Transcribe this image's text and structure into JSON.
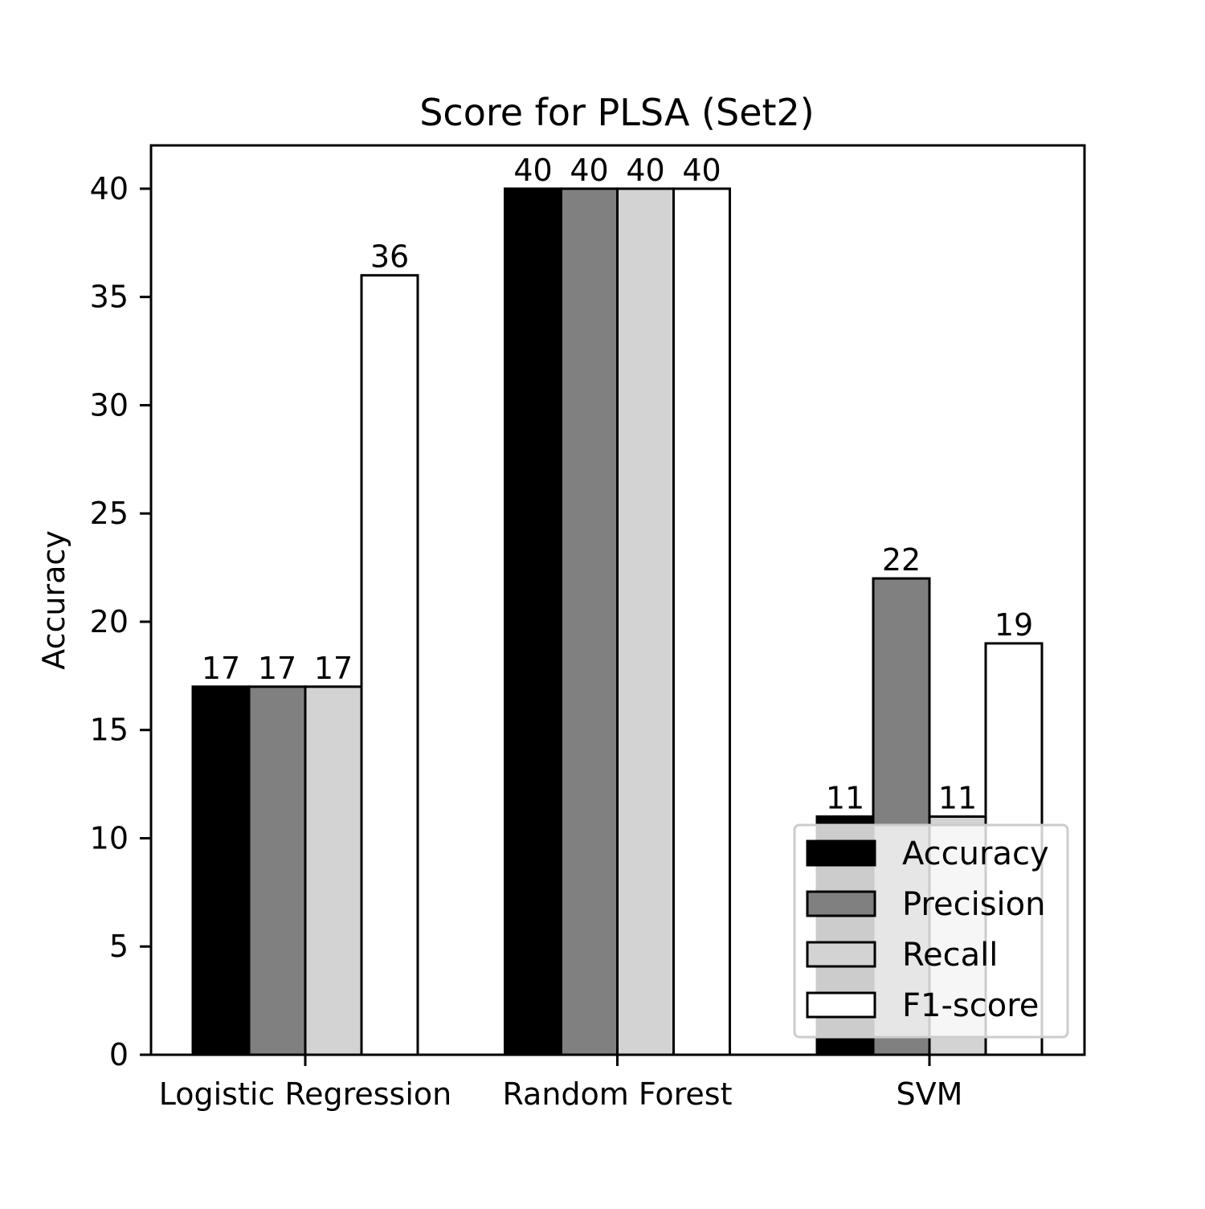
{
  "chart_data": {
    "type": "bar",
    "title": "Score for PLSA (Set2)",
    "xlabel": "",
    "ylabel": "Accuracy",
    "categories": [
      "Logistic Regression",
      "Random Forest",
      "SVM"
    ],
    "series": [
      {
        "name": "Accuracy",
        "values": [
          17,
          40,
          11
        ],
        "color": "#000000"
      },
      {
        "name": "Precision",
        "values": [
          17,
          40,
          22
        ],
        "color": "#808080"
      },
      {
        "name": "Recall",
        "values": [
          17,
          40,
          11
        ],
        "color": "#d3d3d3"
      },
      {
        "name": "F1-score",
        "values": [
          36,
          40,
          19
        ],
        "color": "#ffffff"
      }
    ],
    "ylim": [
      0,
      42
    ],
    "yticks": [
      0,
      5,
      10,
      15,
      20,
      25,
      30,
      35,
      40
    ],
    "grid": false,
    "legend_position": "lower-right"
  }
}
